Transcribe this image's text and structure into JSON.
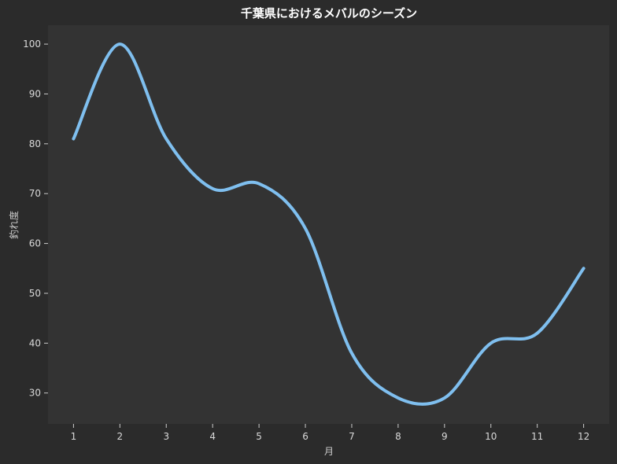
{
  "chart_data": {
    "type": "line",
    "title": "千葉県におけるメバルのシーズン",
    "xlabel": "月",
    "ylabel": "釣れ度",
    "x": [
      1,
      2,
      3,
      4,
      5,
      6,
      7,
      8,
      9,
      10,
      11,
      12
    ],
    "series": [
      {
        "values": [
          81,
          100,
          81,
          71,
          72,
          63,
          38,
          29,
          29,
          40,
          42,
          55
        ]
      }
    ],
    "xlim": [
      0.45,
      12.55
    ],
    "ylim": [
      23.8,
      103.8
    ],
    "xticks": [
      "1",
      "2",
      "3",
      "4",
      "5",
      "6",
      "7",
      "8",
      "9",
      "10",
      "11",
      "12"
    ],
    "yticks": [
      "30",
      "40",
      "50",
      "60",
      "70",
      "80",
      "90",
      "100"
    ],
    "grid": false,
    "line_color": "#7fbfef",
    "plot_bg": "#333333",
    "page_bg": "#2b2b2b"
  }
}
